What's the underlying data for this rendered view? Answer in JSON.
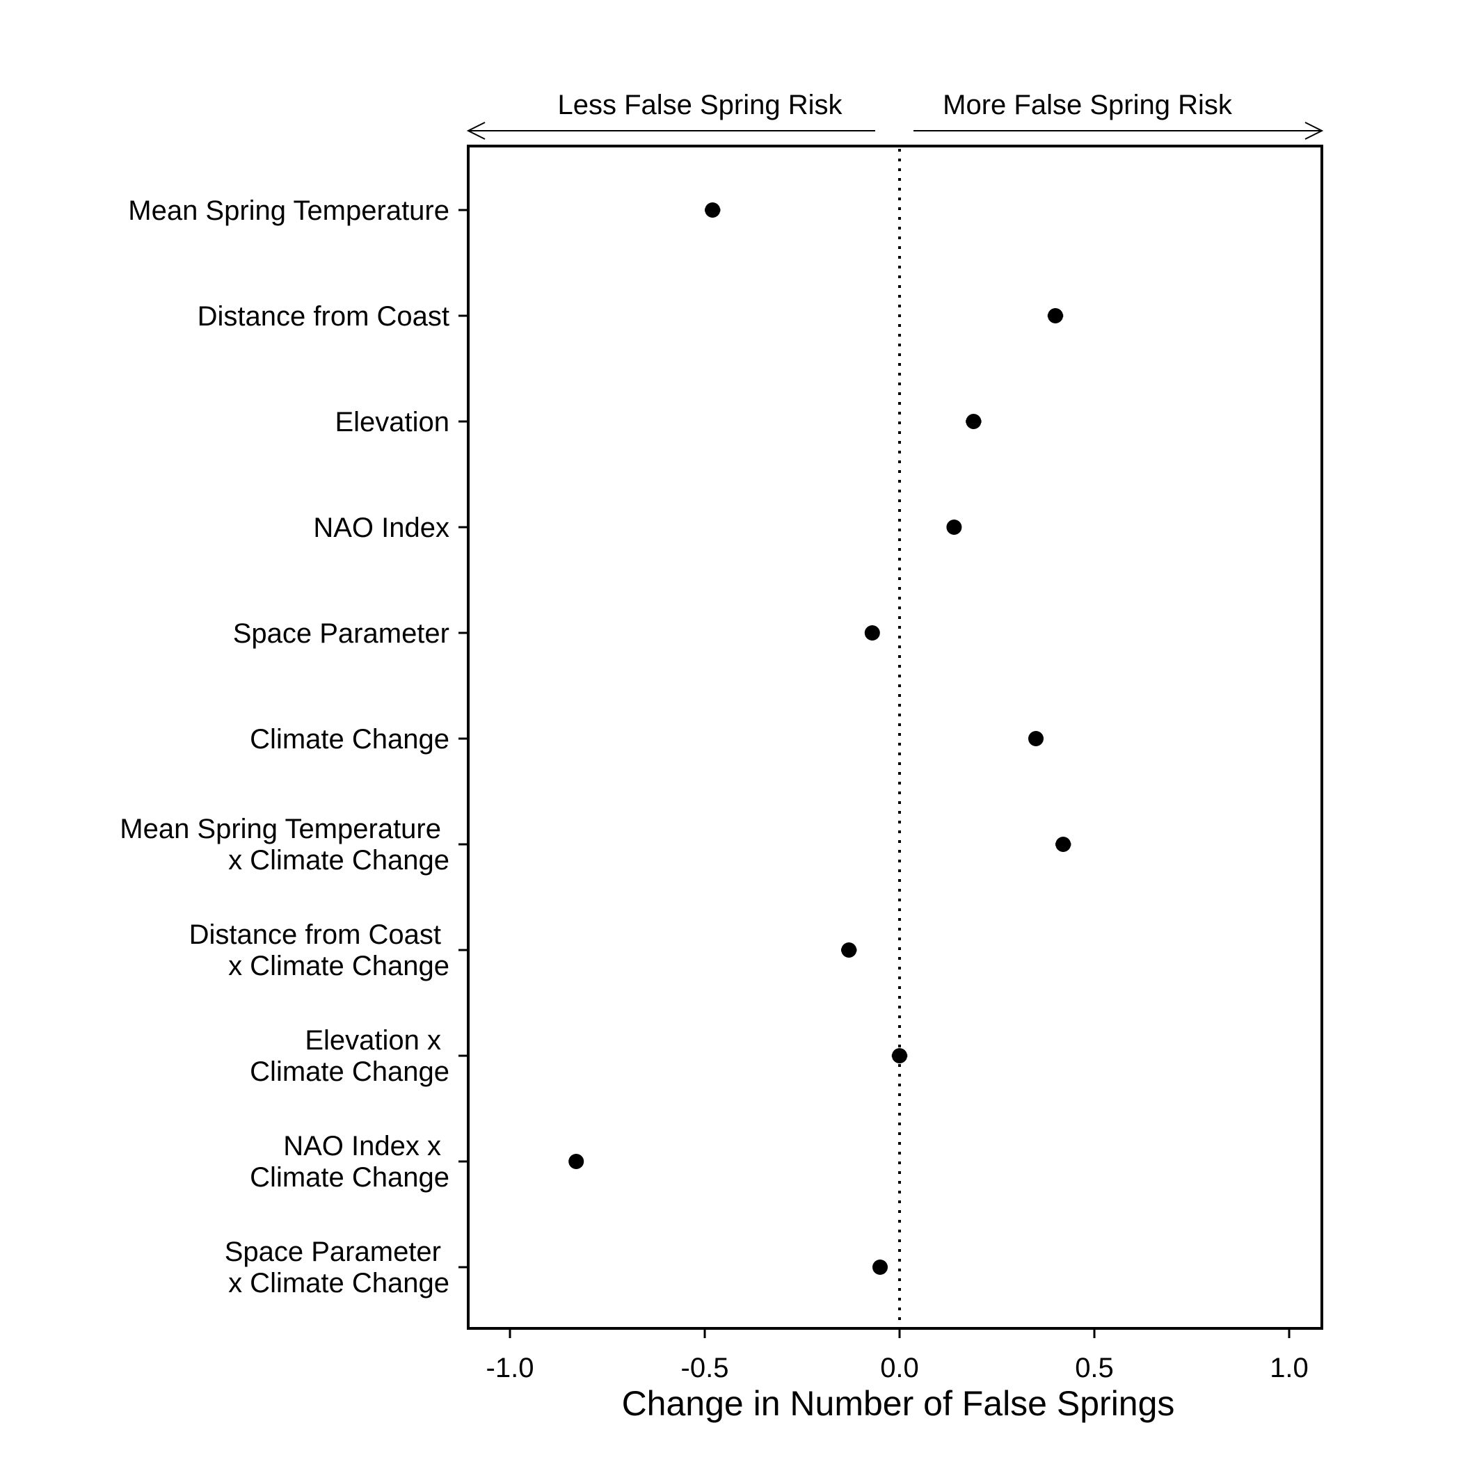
{
  "chart_data": {
    "type": "scatter",
    "header_left": "Less False Spring Risk",
    "header_right": "More False Spring Risk",
    "xlabel": "Change in Number of False Springs",
    "ylabel": "",
    "xlim": [
      -1.1,
      1.1
    ],
    "xticks": [
      "-1.0",
      "-0.5",
      "0.0",
      "0.5",
      "1.0"
    ],
    "xtick_values": [
      -1.0,
      -0.5,
      0.0,
      0.5,
      1.0
    ],
    "reference_line": 0.0,
    "grid": false,
    "categories": [
      [
        "Mean Spring Temperature"
      ],
      [
        "Distance from Coast"
      ],
      [
        "Elevation"
      ],
      [
        "NAO Index"
      ],
      [
        "Space Parameter"
      ],
      [
        "Climate Change"
      ],
      [
        "Mean Spring Temperature",
        "x Climate Change"
      ],
      [
        "Distance from Coast",
        "x Climate Change"
      ],
      [
        "Elevation x",
        "Climate Change"
      ],
      [
        "NAO Index x",
        "Climate Change"
      ],
      [
        "Space Parameter",
        "x Climate Change"
      ]
    ],
    "series": [
      {
        "values": [
          -0.48,
          0.4,
          0.19,
          0.14,
          -0.07,
          0.35,
          0.42,
          -0.13,
          0.0,
          -0.83,
          -0.05
        ],
        "lower": [
          -0.5,
          0.38,
          0.17,
          0.135,
          -0.075,
          0.345,
          0.4,
          -0.15,
          -0.02,
          -0.835,
          -0.055
        ],
        "upper": [
          -0.46,
          0.42,
          0.21,
          0.145,
          -0.065,
          0.355,
          0.44,
          -0.11,
          0.02,
          -0.825,
          -0.045
        ]
      }
    ],
    "colors": {
      "point": "#000000",
      "axis": "#000000",
      "reference": "#000000"
    }
  }
}
